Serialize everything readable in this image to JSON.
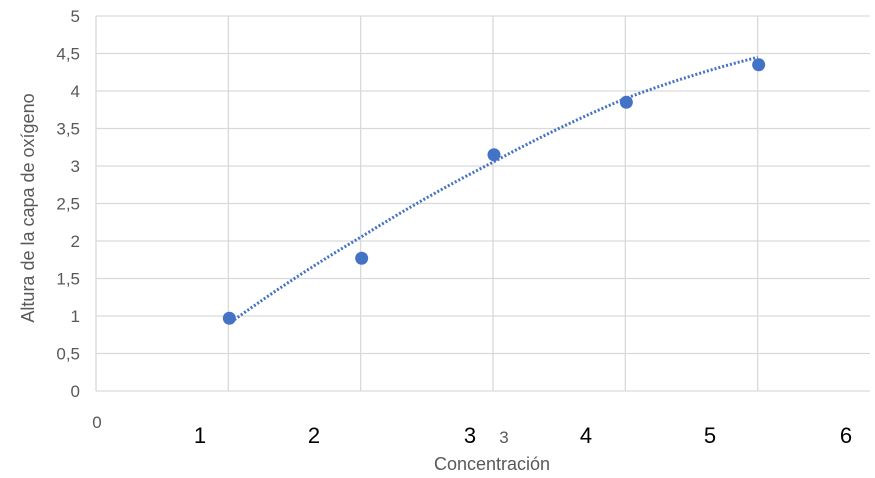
{
  "chart_data": {
    "type": "scatter",
    "xlabel": "Concentración",
    "ylabel": "Altura de la capa de oxígeno",
    "xlim": [
      0,
      6
    ],
    "ylim": [
      0,
      5
    ],
    "grid": true,
    "yticks": [
      "0",
      "0,5",
      "1",
      "1,5",
      "2",
      "2,5",
      "3",
      "3,5",
      "4",
      "4,5",
      "5"
    ],
    "xtick_zero": "0",
    "xtick_labels": [
      "1",
      "2",
      "3",
      "3",
      "4",
      "5",
      "6"
    ],
    "series": [
      {
        "x": [
          1,
          2,
          3,
          4,
          5
        ],
        "y": [
          0.97,
          1.77,
          3.15,
          3.85,
          4.35
        ],
        "color": "#4472c4"
      }
    ],
    "trendline": {
      "style": "dotted",
      "color": "#4472c4",
      "x": [
        1,
        2,
        3,
        4,
        5
      ],
      "y": [
        0.95,
        2.05,
        3.05,
        3.9,
        4.45
      ]
    }
  }
}
